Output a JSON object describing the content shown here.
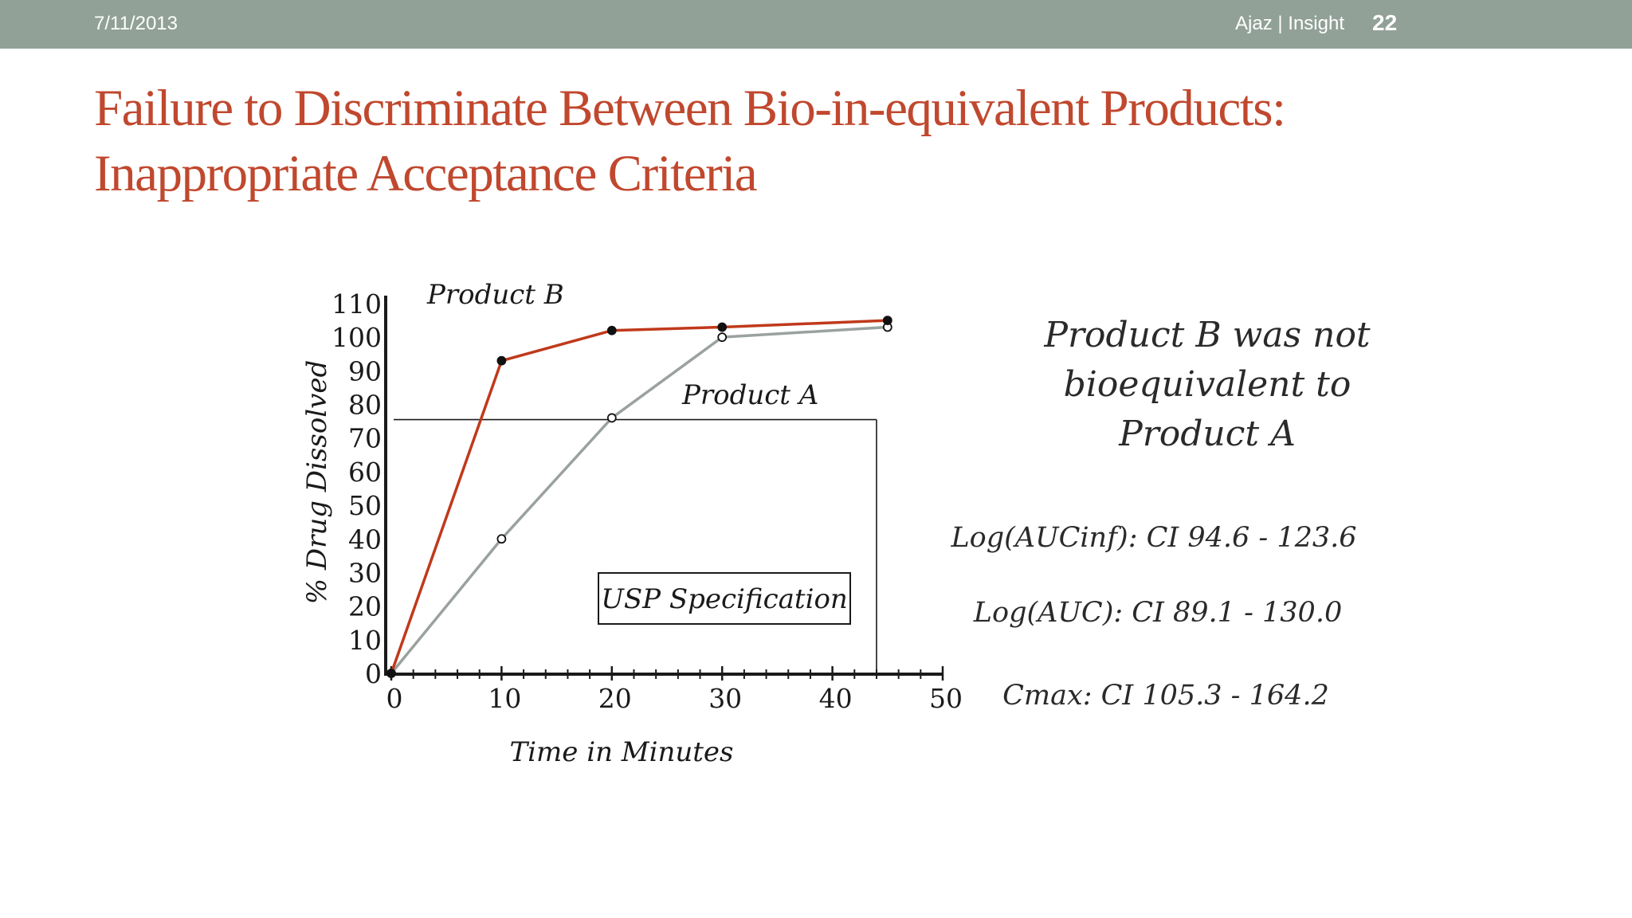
{
  "header": {
    "date": "7/11/2013",
    "author": "Ajaz | Insight",
    "page_number": "22"
  },
  "title": {
    "line1": "Failure to Discriminate Between Bio-in-equivalent Products:",
    "line2": "Inappropriate Acceptance Criteria"
  },
  "conclusion": {
    "line1": "Product B was not",
    "line2": "bioequivalent to",
    "line3": "Product A"
  },
  "stats": [
    "Log(AUCinf): CI 94.6 - 123.6",
    "Log(AUC): CI 89.1 - 130.0",
    "Cmax: CI 105.3 - 164.2"
  ],
  "colors": {
    "header_bar": "#92a198",
    "title": "#c0482e",
    "product_b": "#c0391b",
    "product_a": "#9aa29f",
    "axis": "#1a1a1a"
  },
  "chart_data": {
    "type": "line",
    "xlabel": "Time in Minutes",
    "ylabel": "% Drug Dissolved",
    "xlim": [
      0,
      50
    ],
    "ylim": [
      0,
      110
    ],
    "xticks": [
      "0",
      "10",
      "20",
      "30",
      "40",
      "50"
    ],
    "yticks": [
      "0",
      "10",
      "20",
      "30",
      "40",
      "50",
      "60",
      "70",
      "80",
      "90",
      "100",
      "110"
    ],
    "series": [
      {
        "name": "Product B",
        "marker": "filled",
        "x": [
          0,
          10,
          20,
          30,
          45
        ],
        "y": [
          0,
          93,
          102,
          103,
          105
        ]
      },
      {
        "name": "Product A",
        "marker": "open",
        "x": [
          0,
          10,
          20,
          30,
          45
        ],
        "y": [
          0,
          40,
          76,
          100,
          103
        ]
      }
    ],
    "specification": {
      "label": "USP Specification",
      "y": 75.5,
      "x_end": 44
    },
    "grid": false,
    "legend": "inline labels"
  }
}
